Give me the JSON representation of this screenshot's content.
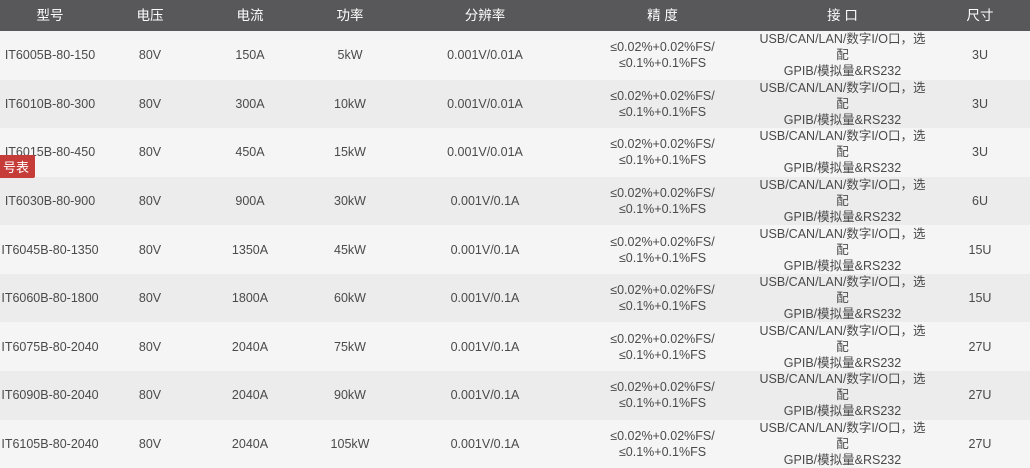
{
  "side_tab": {
    "label": "号表"
  },
  "colors": {
    "header_bg": "#58585a",
    "header_text": "#ffffff",
    "row_odd_bg": "#f5f5f6",
    "row_even_bg": "#ececed",
    "body_text": "#4a4a4a",
    "tab_red": "#c53c38"
  },
  "table": {
    "columns": [
      {
        "key": "model",
        "label": "型号"
      },
      {
        "key": "voltage",
        "label": "电压"
      },
      {
        "key": "current",
        "label": "电流"
      },
      {
        "key": "power",
        "label": "功率"
      },
      {
        "key": "resolution",
        "label": "分辨率"
      },
      {
        "key": "accuracy",
        "label": "精 度"
      },
      {
        "key": "interface",
        "label": "接 口"
      },
      {
        "key": "size",
        "label": "尺寸"
      }
    ],
    "rows": [
      {
        "model": "IT6005B-80-150",
        "voltage": "80V",
        "current": "150A",
        "power": "5kW",
        "resolution": "0.001V/0.01A",
        "accuracy": "≤0.02%+0.02%FS/\n≤0.1%+0.1%FS",
        "interface": "USB/CAN/LAN/数字I/O口，选配\nGPIB/模拟量&RS232",
        "size": "3U"
      },
      {
        "model": "IT6010B-80-300",
        "voltage": "80V",
        "current": "300A",
        "power": "10kW",
        "resolution": "0.001V/0.01A",
        "accuracy": "≤0.02%+0.02%FS/\n≤0.1%+0.1%FS",
        "interface": "USB/CAN/LAN/数字I/O口，选配\nGPIB/模拟量&RS232",
        "size": "3U"
      },
      {
        "model": "IT6015B-80-450",
        "voltage": "80V",
        "current": "450A",
        "power": "15kW",
        "resolution": "0.001V/0.01A",
        "accuracy": "≤0.02%+0.02%FS/\n≤0.1%+0.1%FS",
        "interface": "USB/CAN/LAN/数字I/O口，选配\nGPIB/模拟量&RS232",
        "size": "3U"
      },
      {
        "model": "IT6030B-80-900",
        "voltage": "80V",
        "current": "900A",
        "power": "30kW",
        "resolution": "0.001V/0.1A",
        "accuracy": "≤0.02%+0.02%FS/\n≤0.1%+0.1%FS",
        "interface": "USB/CAN/LAN/数字I/O口，选配\nGPIB/模拟量&RS232",
        "size": "6U"
      },
      {
        "model": "IT6045B-80-1350",
        "voltage": "80V",
        "current": "1350A",
        "power": "45kW",
        "resolution": "0.001V/0.1A",
        "accuracy": "≤0.02%+0.02%FS/\n≤0.1%+0.1%FS",
        "interface": "USB/CAN/LAN/数字I/O口，选配\nGPIB/模拟量&RS232",
        "size": "15U"
      },
      {
        "model": "IT6060B-80-1800",
        "voltage": "80V",
        "current": "1800A",
        "power": "60kW",
        "resolution": "0.001V/0.1A",
        "accuracy": "≤0.02%+0.02%FS/\n≤0.1%+0.1%FS",
        "interface": "USB/CAN/LAN/数字I/O口，选配\nGPIB/模拟量&RS232",
        "size": "15U"
      },
      {
        "model": "IT6075B-80-2040",
        "voltage": "80V",
        "current": "2040A",
        "power": "75kW",
        "resolution": "0.001V/0.1A",
        "accuracy": "≤0.02%+0.02%FS/\n≤0.1%+0.1%FS",
        "interface": "USB/CAN/LAN/数字I/O口，选配\nGPIB/模拟量&RS232",
        "size": "27U"
      },
      {
        "model": "IT6090B-80-2040",
        "voltage": "80V",
        "current": "2040A",
        "power": "90kW",
        "resolution": "0.001V/0.1A",
        "accuracy": "≤0.02%+0.02%FS/\n≤0.1%+0.1%FS",
        "interface": "USB/CAN/LAN/数字I/O口，选配\nGPIB/模拟量&RS232",
        "size": "27U"
      },
      {
        "model": "IT6105B-80-2040",
        "voltage": "80V",
        "current": "2040A",
        "power": "105kW",
        "resolution": "0.001V/0.1A",
        "accuracy": "≤0.02%+0.02%FS/\n≤0.1%+0.1%FS",
        "interface": "USB/CAN/LAN/数字I/O口，选配\nGPIB/模拟量&RS232",
        "size": "27U"
      }
    ]
  }
}
